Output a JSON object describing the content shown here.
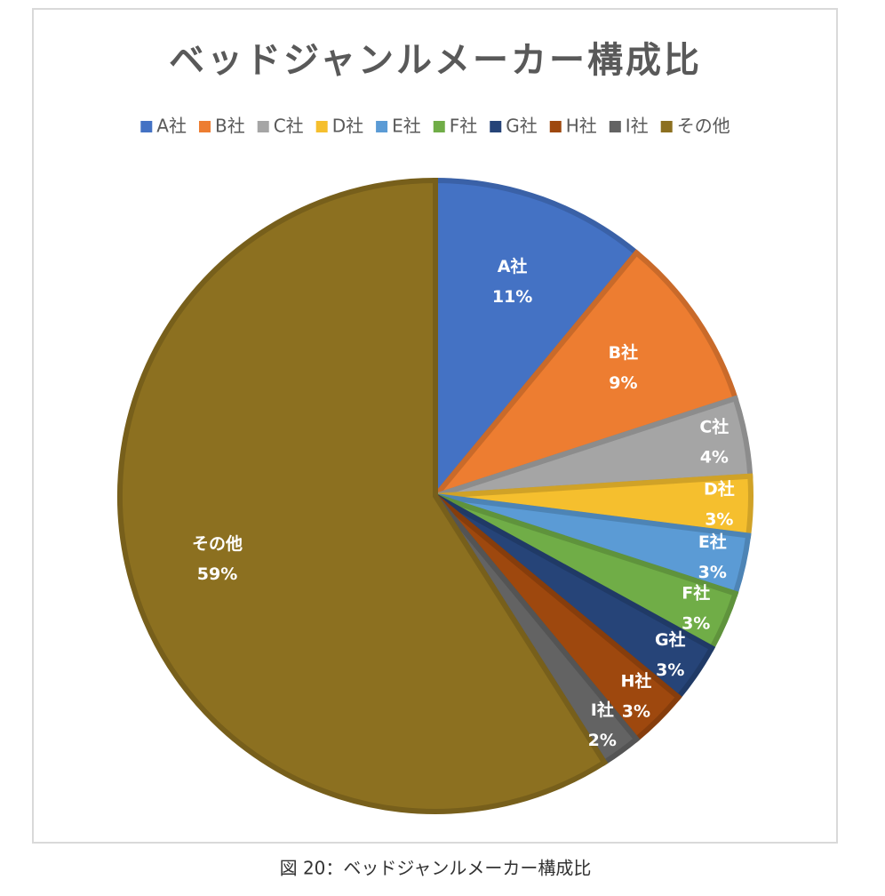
{
  "chart_data": {
    "type": "pie",
    "title": "ベッドジャンルメーカー構成比",
    "categories": [
      "A社",
      "B社",
      "C社",
      "D社",
      "E社",
      "F社",
      "G社",
      "H社",
      "I社",
      "その他"
    ],
    "values": [
      11,
      9,
      4,
      3,
      3,
      3,
      3,
      3,
      2,
      59
    ],
    "value_labels": [
      "11%",
      "9%",
      "4%",
      "3%",
      "3%",
      "3%",
      "3%",
      "3%",
      "2%",
      "59%"
    ],
    "colors": [
      "#4472c4",
      "#ed7d31",
      "#a5a5a5",
      "#f5bf2e",
      "#5b9bd5",
      "#70ad47",
      "#264478",
      "#9e480e",
      "#636363",
      "#8c7020"
    ],
    "legend": "top",
    "caption": "図 20：ベッドジャンルメーカー構成比"
  }
}
